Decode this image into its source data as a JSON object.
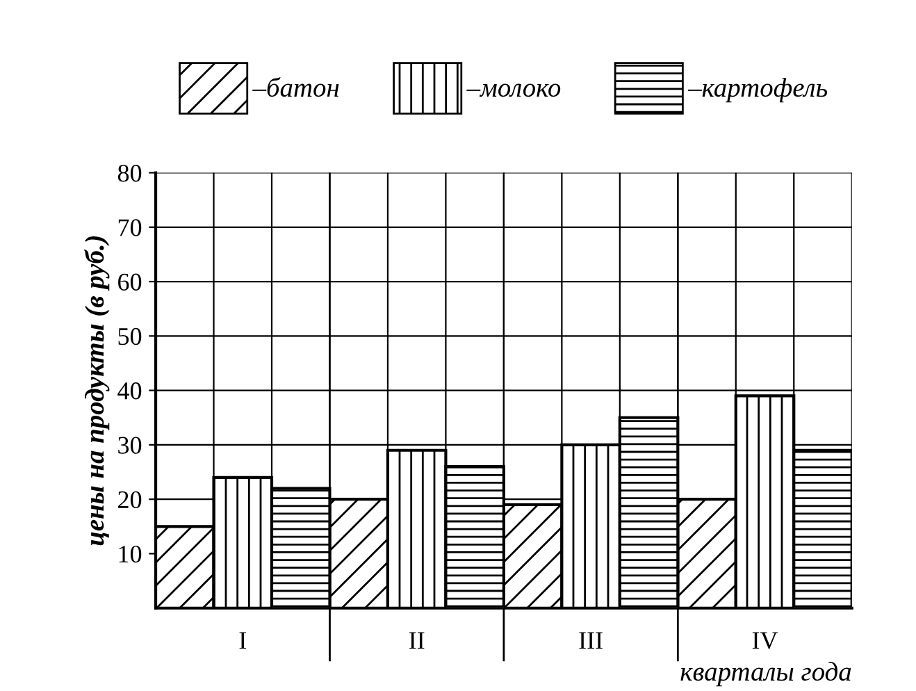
{
  "chart_data": {
    "type": "bar",
    "xlabel": "кварталы года",
    "ylabel": "цены на продукты (в руб.)",
    "categories": [
      "I",
      "II",
      "III",
      "IV"
    ],
    "series": [
      {
        "name": "–батон",
        "color": "#000000",
        "values": [
          15,
          20,
          19,
          20
        ]
      },
      {
        "name": "–молоко",
        "color": "#000000",
        "values": [
          24,
          29,
          30,
          39
        ]
      },
      {
        "name": "–картофель",
        "color": "#000000",
        "values": [
          22,
          26,
          35,
          29
        ]
      }
    ],
    "ylim": [
      0,
      80
    ],
    "yticks": [
      10,
      20,
      30,
      40,
      50,
      60,
      70,
      80
    ],
    "grid": true,
    "legend": "top"
  }
}
